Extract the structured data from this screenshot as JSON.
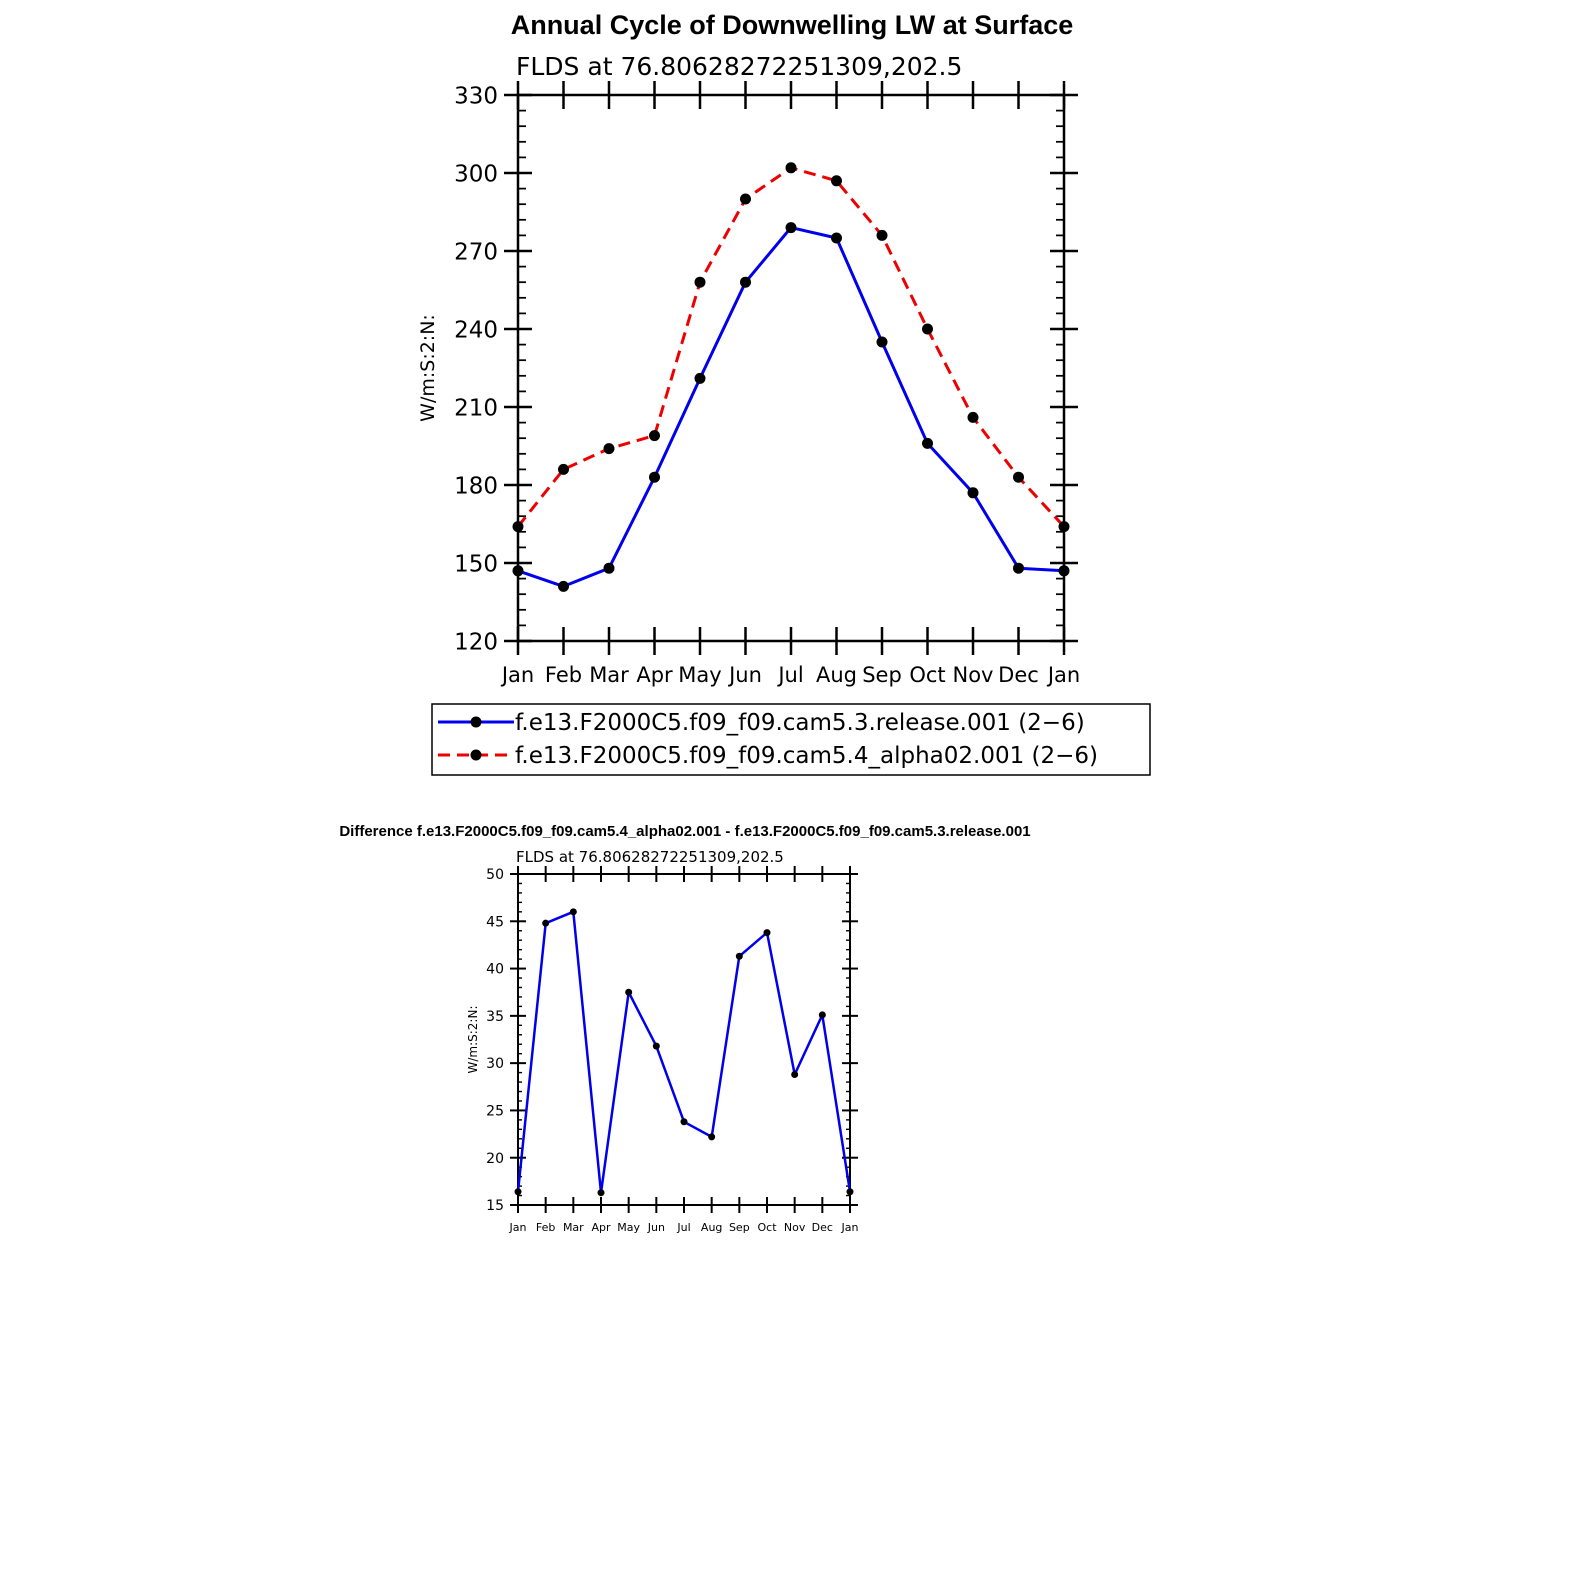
{
  "colors": {
    "series_a": "#0000ee",
    "series_b": "#ee0000",
    "marker": "#000000",
    "axis": "#000000"
  },
  "chart_data": [
    {
      "type": "line",
      "title": "Annual Cycle of Downwelling LW at Surface",
      "subtitle": "FLDS at 76.80628272251309,202.5",
      "ylabel": "W/m:S:2:N:",
      "xlabel": "",
      "ylim": [
        120,
        330
      ],
      "yticks": [
        120,
        150,
        180,
        210,
        240,
        270,
        300,
        330
      ],
      "categories": [
        "Jan",
        "Feb",
        "Mar",
        "Apr",
        "May",
        "Jun",
        "Jul",
        "Aug",
        "Sep",
        "Oct",
        "Nov",
        "Dec",
        "Jan"
      ],
      "grid": false,
      "legend": "bottom",
      "series": [
        {
          "name": "f.e13.F2000C5.f09_f09.cam5.3.release.001 (2−6)",
          "style": "solid",
          "color": "#0000ee",
          "values": [
            147,
            141,
            148,
            183,
            221,
            258,
            279,
            275,
            235,
            196,
            177,
            148,
            147
          ]
        },
        {
          "name": "f.e13.F2000C5.f09_f09.cam5.4_alpha02.001 (2−6)",
          "style": "dashed",
          "color": "#ee0000",
          "values": [
            164,
            186,
            194,
            199,
            258,
            290,
            302,
            297,
            276,
            240,
            206,
            183,
            164
          ]
        }
      ]
    },
    {
      "type": "line",
      "title": "Difference f.e13.F2000C5.f09_f09.cam5.4_alpha02.001 - f.e13.F2000C5.f09_f09.cam5.3.release.001",
      "subtitle": "FLDS at 76.80628272251309,202.5",
      "ylabel": "W/m:S:2:N:",
      "xlabel": "",
      "ylim": [
        15,
        50
      ],
      "yticks": [
        15,
        20,
        25,
        30,
        35,
        40,
        45,
        50
      ],
      "categories": [
        "Jan",
        "Feb",
        "Mar",
        "Apr",
        "May",
        "Jun",
        "Jul",
        "Aug",
        "Sep",
        "Oct",
        "Nov",
        "Dec",
        "Jan"
      ],
      "grid": false,
      "series": [
        {
          "style": "solid",
          "color": "#0000ee",
          "values": [
            16.4,
            44.8,
            46.0,
            16.3,
            37.5,
            31.8,
            23.8,
            22.2,
            41.3,
            43.8,
            28.8,
            35.1,
            16.4
          ]
        }
      ]
    }
  ]
}
